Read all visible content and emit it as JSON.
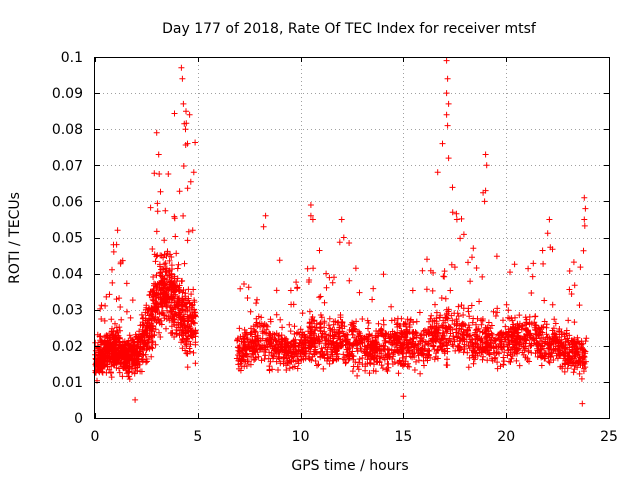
{
  "chart_data": {
    "type": "scatter",
    "title": "Day 177 of 2018, Rate Of TEC Index for receiver mtsf",
    "xlabel": "GPS time / hours",
    "ylabel": "ROTI / TECUs",
    "xlim": [
      0,
      25
    ],
    "ylim": [
      0,
      0.1
    ],
    "x_ticks": [
      0,
      5,
      10,
      15,
      20,
      25
    ],
    "x_tick_labels": [
      "0",
      "5",
      "10",
      "15",
      "20",
      "25"
    ],
    "y_ticks": [
      0,
      0.01,
      0.02,
      0.03,
      0.04,
      0.05,
      0.06,
      0.07,
      0.08,
      0.09,
      0.1
    ],
    "y_tick_labels": [
      "0",
      "0.01",
      "0.02",
      "0.03",
      "0.04",
      "0.05",
      "0.06",
      "0.07",
      "0.08",
      "0.09",
      "0.1"
    ],
    "grid": true,
    "marker": "+",
    "color": "#ff0000",
    "data_gap": [
      4.9,
      6.9
    ],
    "series": [
      {
        "name": "ROTI",
        "envelope": {
          "hours": [
            0.0,
            0.5,
            1.0,
            1.5,
            2.0,
            2.5,
            3.0,
            3.5,
            4.0,
            4.5,
            4.9,
            6.9,
            7.5,
            8.0,
            8.5,
            9.0,
            9.5,
            10.0,
            10.5,
            11.0,
            11.5,
            12.0,
            12.5,
            13.0,
            13.5,
            14.0,
            14.5,
            15.0,
            15.5,
            16.0,
            16.5,
            17.0,
            17.5,
            18.0,
            18.5,
            19.0,
            19.5,
            20.0,
            20.5,
            21.0,
            21.5,
            22.0,
            22.5,
            23.0,
            23.5,
            23.9
          ],
          "median": [
            0.015,
            0.018,
            0.02,
            0.017,
            0.018,
            0.024,
            0.033,
            0.036,
            0.03,
            0.026,
            0.025,
            0.018,
            0.019,
            0.022,
            0.02,
            0.019,
            0.018,
            0.02,
            0.022,
            0.021,
            0.02,
            0.022,
            0.021,
            0.02,
            0.019,
            0.02,
            0.021,
            0.021,
            0.02,
            0.02,
            0.022,
            0.024,
            0.024,
            0.023,
            0.022,
            0.022,
            0.019,
            0.021,
            0.022,
            0.022,
            0.022,
            0.021,
            0.02,
            0.019,
            0.017,
            0.016
          ],
          "spread": [
            0.006,
            0.008,
            0.009,
            0.007,
            0.008,
            0.012,
            0.015,
            0.016,
            0.015,
            0.014,
            0.012,
            0.007,
            0.008,
            0.01,
            0.009,
            0.008,
            0.008,
            0.009,
            0.01,
            0.01,
            0.009,
            0.01,
            0.01,
            0.009,
            0.009,
            0.009,
            0.01,
            0.01,
            0.009,
            0.009,
            0.01,
            0.011,
            0.011,
            0.01,
            0.01,
            0.009,
            0.008,
            0.009,
            0.01,
            0.01,
            0.01,
            0.01,
            0.009,
            0.009,
            0.008,
            0.007
          ],
          "peak": [
            0.03,
            0.036,
            0.052,
            0.04,
            0.038,
            0.052,
            0.079,
            0.065,
            0.097,
            0.084,
            0.084,
            0.037,
            0.04,
            0.056,
            0.048,
            0.045,
            0.04,
            0.044,
            0.059,
            0.046,
            0.048,
            0.055,
            0.047,
            0.043,
            0.044,
            0.048,
            0.038,
            0.036,
            0.038,
            0.045,
            0.057,
            0.099,
            0.057,
            0.055,
            0.047,
            0.073,
            0.045,
            0.05,
            0.051,
            0.045,
            0.048,
            0.055,
            0.05,
            0.046,
            0.049,
            0.061
          ]
        },
        "spikes": [
          {
            "x": 3.0,
            "y": 0.079
          },
          {
            "x": 3.1,
            "y": 0.073
          },
          {
            "x": 4.2,
            "y": 0.097
          },
          {
            "x": 4.25,
            "y": 0.094
          },
          {
            "x": 4.3,
            "y": 0.087
          },
          {
            "x": 4.4,
            "y": 0.08
          },
          {
            "x": 4.6,
            "y": 0.084
          },
          {
            "x": 4.5,
            "y": 0.076
          },
          {
            "x": 1.1,
            "y": 0.052
          },
          {
            "x": 0.9,
            "y": 0.048
          },
          {
            "x": 1.95,
            "y": 0.005
          },
          {
            "x": 8.3,
            "y": 0.056
          },
          {
            "x": 8.2,
            "y": 0.053
          },
          {
            "x": 10.5,
            "y": 0.059
          },
          {
            "x": 10.6,
            "y": 0.055
          },
          {
            "x": 12.0,
            "y": 0.055
          },
          {
            "x": 12.1,
            "y": 0.05
          },
          {
            "x": 17.1,
            "y": 0.099
          },
          {
            "x": 17.15,
            "y": 0.094
          },
          {
            "x": 17.1,
            "y": 0.09
          },
          {
            "x": 17.2,
            "y": 0.087
          },
          {
            "x": 17.1,
            "y": 0.084
          },
          {
            "x": 17.15,
            "y": 0.081
          },
          {
            "x": 17.2,
            "y": 0.072
          },
          {
            "x": 16.9,
            "y": 0.076
          },
          {
            "x": 17.4,
            "y": 0.057
          },
          {
            "x": 17.6,
            "y": 0.055
          },
          {
            "x": 19.0,
            "y": 0.073
          },
          {
            "x": 19.05,
            "y": 0.07
          },
          {
            "x": 19.0,
            "y": 0.063
          },
          {
            "x": 18.95,
            "y": 0.06
          },
          {
            "x": 22.1,
            "y": 0.055
          },
          {
            "x": 23.8,
            "y": 0.061
          },
          {
            "x": 23.85,
            "y": 0.058
          },
          {
            "x": 23.8,
            "y": 0.055
          },
          {
            "x": 23.7,
            "y": 0.004
          },
          {
            "x": 10.5,
            "y": 0.056
          },
          {
            "x": 18.4,
            "y": 0.047
          },
          {
            "x": 15.0,
            "y": 0.006
          }
        ]
      }
    ]
  }
}
